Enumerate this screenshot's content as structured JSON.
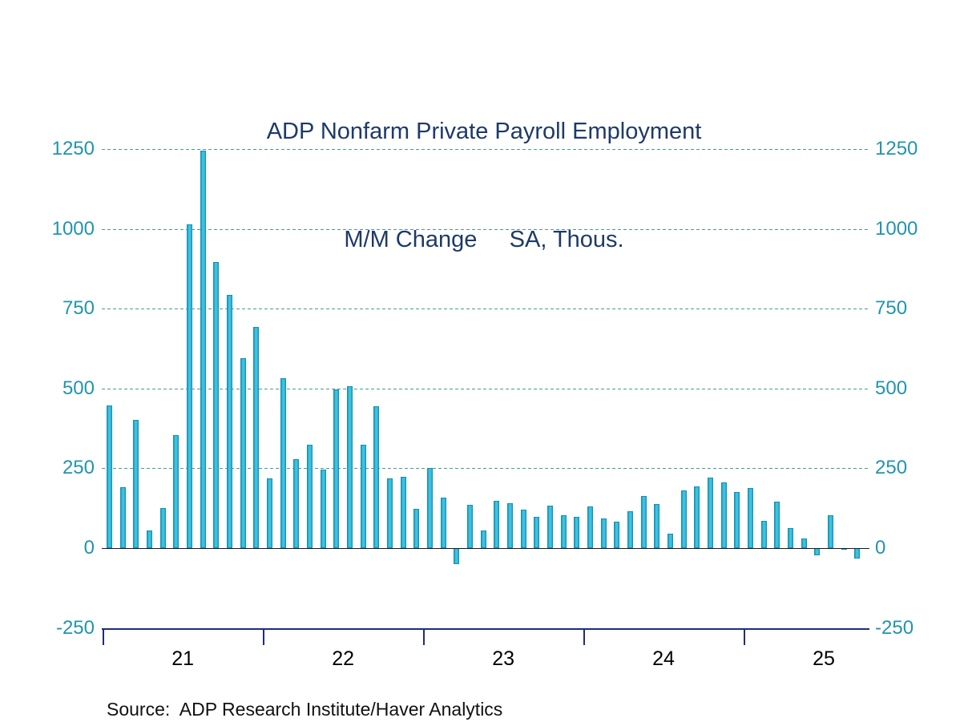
{
  "title": {
    "line1": "ADP Nonfarm Private Payroll Employment",
    "line2": "M/M Change     SA, Thous."
  },
  "source": "Source:  ADP Research Institute/Haver Analytics",
  "colors": {
    "title": "#1e3a68",
    "axis_labels": "#2095ae",
    "bar_fill": "#2eb6d8",
    "bar_edge": "#1292b4",
    "gridline": "#4d9b8c",
    "zero_line": "#1a1a1a",
    "x_axis": "#1f2d7a",
    "x_labels": "#000000"
  },
  "chart_data": {
    "type": "bar",
    "title": "ADP Nonfarm Private Payroll Employment",
    "subtitle": "M/M Change  SA, Thous.",
    "ylabel": "Thousands, seasonally adjusted",
    "frequency": "monthly",
    "x_start": "2021-01",
    "x_end": "2025-09",
    "x_tick_labels": [
      "21",
      "22",
      "23",
      "24",
      "25"
    ],
    "ylim": [
      -250,
      1250
    ],
    "yticks": [
      -250,
      0,
      250,
      500,
      750,
      1000,
      1250
    ],
    "grid_yticks": [
      250,
      500,
      750,
      1000,
      1250
    ],
    "grid": "dashed horizontal",
    "legend_position": "none",
    "series": [
      {
        "name": "ADP Nonfarm Private Payroll Employment, M/M Change",
        "values": [
          447,
          190,
          402,
          55,
          125,
          353,
          1015,
          1245,
          895,
          793,
          595,
          694,
          218,
          532,
          278,
          323,
          245,
          496,
          506,
          324,
          444,
          218,
          224,
          122,
          250,
          158,
          -50,
          135,
          55,
          148,
          140,
          120,
          98,
          134,
          104,
          98,
          131,
          93,
          84,
          115,
          164,
          137,
          46,
          180,
          194,
          221,
          205,
          176,
          187,
          86,
          146,
          62,
          30,
          -22,
          104,
          -5,
          -32
        ]
      }
    ]
  }
}
